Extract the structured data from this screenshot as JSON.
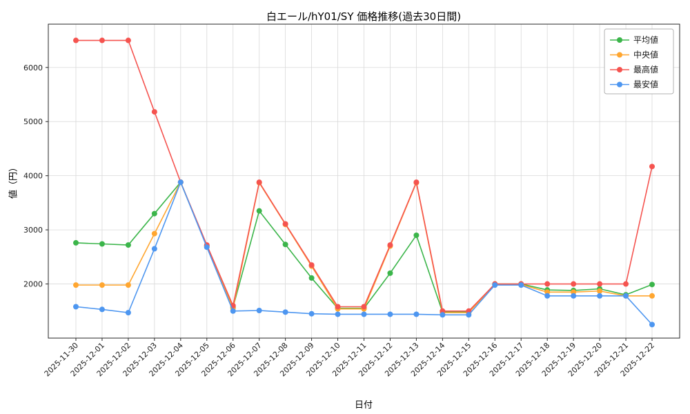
{
  "figure": {
    "title": "白エール/hY01/SY 価格推移(過去30日間)",
    "xlabel": "日付",
    "ylabel": "値（円）"
  },
  "chart_data": {
    "type": "line",
    "title": "白エール/hY01/SY 価格推移(過去30日間)",
    "xlabel": "日付",
    "ylabel": "値（円）",
    "grid": true,
    "legend_position": "upper right",
    "x_tick_rotation": 45,
    "ylim": [
      1000,
      6800
    ],
    "yticks": [
      2000,
      3000,
      4000,
      5000,
      6000
    ],
    "categories": [
      "2025-11-30",
      "2025-12-01",
      "2025-12-02",
      "2025-12-03",
      "2025-12-04",
      "2025-12-05",
      "2025-12-06",
      "2025-12-07",
      "2025-12-08",
      "2025-12-09",
      "2025-12-10",
      "2025-12-11",
      "2025-12-12",
      "2025-12-13",
      "2025-12-14",
      "2025-12-15",
      "2025-12-16",
      "2025-12-17",
      "2025-12-18",
      "2025-12-19",
      "2025-12-20",
      "2025-12-21",
      "2025-12-22"
    ],
    "series": [
      {
        "name": "平均値",
        "color": "#3bb54a",
        "values": [
          2760,
          2740,
          2720,
          3300,
          3880,
          2700,
          1570,
          3350,
          2730,
          2110,
          1550,
          1550,
          2200,
          2900,
          1480,
          1480,
          2000,
          2000,
          1890,
          1880,
          1910,
          1800,
          1990
        ]
      },
      {
        "name": "中央値",
        "color": "#ffa630",
        "values": [
          1980,
          1980,
          1980,
          2930,
          3880,
          2700,
          1550,
          3870,
          3100,
          2330,
          1540,
          1540,
          2700,
          3870,
          1470,
          1470,
          1990,
          1990,
          1850,
          1850,
          1870,
          1780,
          1780
        ]
      },
      {
        "name": "最高値",
        "color": "#f5534f",
        "values": [
          6500,
          6500,
          6500,
          5180,
          3880,
          2720,
          1600,
          3880,
          3110,
          2350,
          1580,
          1580,
          2720,
          3880,
          1500,
          1500,
          2000,
          2000,
          2000,
          2000,
          2000,
          2000,
          4170
        ]
      },
      {
        "name": "最安値",
        "color": "#4d96f0",
        "values": [
          1580,
          1530,
          1470,
          2650,
          3880,
          2680,
          1500,
          1510,
          1480,
          1450,
          1440,
          1440,
          1440,
          1440,
          1430,
          1430,
          1980,
          1980,
          1780,
          1780,
          1780,
          1780,
          1250
        ]
      }
    ]
  }
}
